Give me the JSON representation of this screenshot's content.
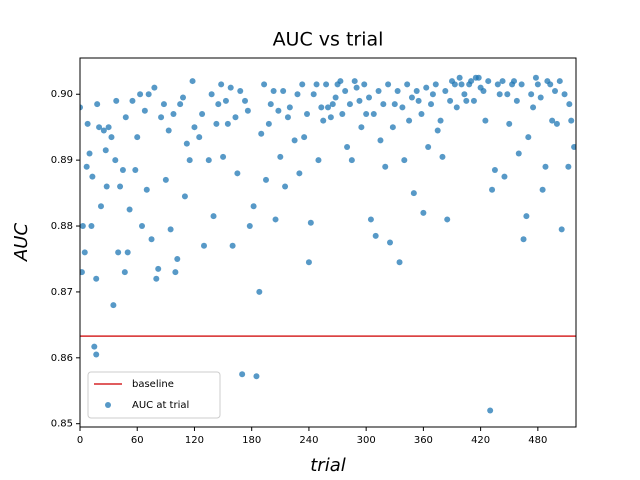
{
  "chart_data": {
    "type": "scatter",
    "title": "AUC vs trial",
    "x_label": "trial",
    "y_label": "AUC",
    "xlim": [
      0,
      520
    ],
    "ylim": [
      0.8495,
      0.9055
    ],
    "xticks": [
      0,
      60,
      120,
      180,
      240,
      300,
      360,
      420,
      480
    ],
    "yticks": [
      0.85,
      0.86,
      0.87,
      0.88,
      0.89,
      {
        "value": 0.9,
        "label": "0.90"
      }
    ],
    "grid": false,
    "legend_position": "lower left",
    "baseline": {
      "name": "baseline",
      "value": 0.8633,
      "color": "#d62728"
    },
    "series": [
      {
        "name": "AUC at trial",
        "color": "#1f77b4",
        "x": [
          0,
          2,
          3,
          5,
          7,
          10,
          12,
          13,
          15,
          17,
          17,
          20,
          22,
          25,
          28,
          30,
          33,
          35,
          37,
          40,
          42,
          45,
          47,
          50,
          52,
          55,
          58,
          60,
          65,
          70,
          72,
          75,
          80,
          82,
          85,
          90,
          95,
          100,
          102,
          105,
          110,
          115,
          118,
          120,
          125,
          130,
          135,
          140,
          145,
          150,
          155,
          160,
          165,
          170,
          173,
          178,
          182,
          185,
          188,
          190,
          195,
          200,
          205,
          210,
          215,
          220,
          225,
          230,
          235,
          240,
          242,
          245,
          250,
          255,
          260,
          265,
          270,
          275,
          280,
          285,
          290,
          295,
          300,
          305,
          310,
          315,
          320,
          325,
          330,
          335,
          340,
          345,
          350,
          355,
          360,
          365,
          370,
          375,
          380,
          385,
          390,
          395,
          400,
          405,
          410,
          415,
          420,
          425,
          430,
          432,
          435,
          440,
          445,
          450,
          455,
          460,
          465,
          468,
          470,
          475,
          480,
          485,
          488,
          490,
          495,
          500,
          505,
          508,
          512,
          515,
          518,
          8,
          18,
          27,
          38,
          48,
          63,
          68,
          78,
          88,
          93,
          98,
          108,
          112,
          128,
          138,
          143,
          148,
          153,
          158,
          163,
          168,
          176,
          193,
          198,
          203,
          208,
          213,
          218,
          228,
          233,
          238,
          248,
          253,
          258,
          263,
          268,
          273,
          278,
          283,
          288,
          293,
          298,
          303,
          308,
          313,
          318,
          323,
          328,
          333,
          338,
          343,
          348,
          353,
          358,
          363,
          368,
          373,
          378,
          383,
          388,
          393,
          398,
          403,
          408,
          413,
          418,
          423,
          428,
          438,
          443,
          448,
          453,
          458,
          463,
          473,
          478,
          483,
          493,
          498,
          503,
          513
        ],
        "values": [
          0.898,
          0.873,
          0.88,
          0.876,
          0.889,
          0.891,
          0.88,
          0.8875,
          0.8617,
          0.8605,
          0.872,
          0.895,
          0.883,
          0.8945,
          0.886,
          0.895,
          0.8935,
          0.868,
          0.89,
          0.876,
          0.886,
          0.8885,
          0.873,
          0.876,
          0.8825,
          0.899,
          0.8885,
          0.8935,
          0.88,
          0.8855,
          0.9,
          0.878,
          0.872,
          0.8735,
          0.8965,
          0.887,
          0.8795,
          0.873,
          0.875,
          0.8985,
          0.8845,
          0.89,
          0.902,
          0.895,
          0.8935,
          0.877,
          0.89,
          0.8815,
          0.8985,
          0.8905,
          0.8955,
          0.877,
          0.888,
          0.8575,
          0.899,
          0.88,
          0.883,
          0.8572,
          0.87,
          0.894,
          0.887,
          0.8985,
          0.881,
          0.8905,
          0.886,
          0.898,
          0.893,
          0.888,
          0.8935,
          0.8745,
          0.8805,
          0.9,
          0.89,
          0.896,
          0.898,
          0.8985,
          0.9015,
          0.897,
          0.892,
          0.89,
          0.901,
          0.895,
          0.897,
          0.881,
          0.8785,
          0.893,
          0.889,
          0.8775,
          0.8985,
          0.8745,
          0.89,
          0.896,
          0.885,
          0.899,
          0.882,
          0.892,
          0.9,
          0.8945,
          0.8905,
          0.881,
          0.902,
          0.898,
          0.9015,
          0.899,
          0.902,
          0.9025,
          0.901,
          0.896,
          0.852,
          0.8855,
          0.8885,
          0.9,
          0.8875,
          0.8955,
          0.902,
          0.891,
          0.878,
          0.8815,
          0.8935,
          0.898,
          0.9015,
          0.8855,
          0.889,
          0.902,
          0.896,
          0.8955,
          0.8795,
          0.9,
          0.889,
          0.896,
          0.892,
          0.8955,
          0.8985,
          0.8915,
          0.899,
          0.8965,
          0.9,
          0.8975,
          0.901,
          0.8985,
          0.8945,
          0.897,
          0.8995,
          0.8925,
          0.897,
          0.9,
          0.8955,
          0.9015,
          0.899,
          0.901,
          0.8965,
          0.9005,
          0.8975,
          0.9015,
          0.8955,
          0.9005,
          0.8975,
          0.9005,
          0.8965,
          0.9,
          0.9015,
          0.897,
          0.9015,
          0.898,
          0.9015,
          0.8965,
          0.8995,
          0.902,
          0.9005,
          0.8985,
          0.902,
          0.899,
          0.9015,
          0.8995,
          0.897,
          0.9005,
          0.8985,
          0.9015,
          0.895,
          0.9005,
          0.898,
          0.9015,
          0.8995,
          0.9005,
          0.897,
          0.901,
          0.8985,
          0.9015,
          0.896,
          0.9005,
          0.899,
          0.9015,
          0.9025,
          0.9,
          0.9015,
          0.899,
          0.9025,
          0.9005,
          0.902,
          0.9015,
          0.902,
          0.9,
          0.9015,
          0.899,
          0.9015,
          0.9,
          0.9025,
          0.8995,
          0.9015,
          0.9005,
          0.902,
          0.8985
        ]
      }
    ]
  }
}
